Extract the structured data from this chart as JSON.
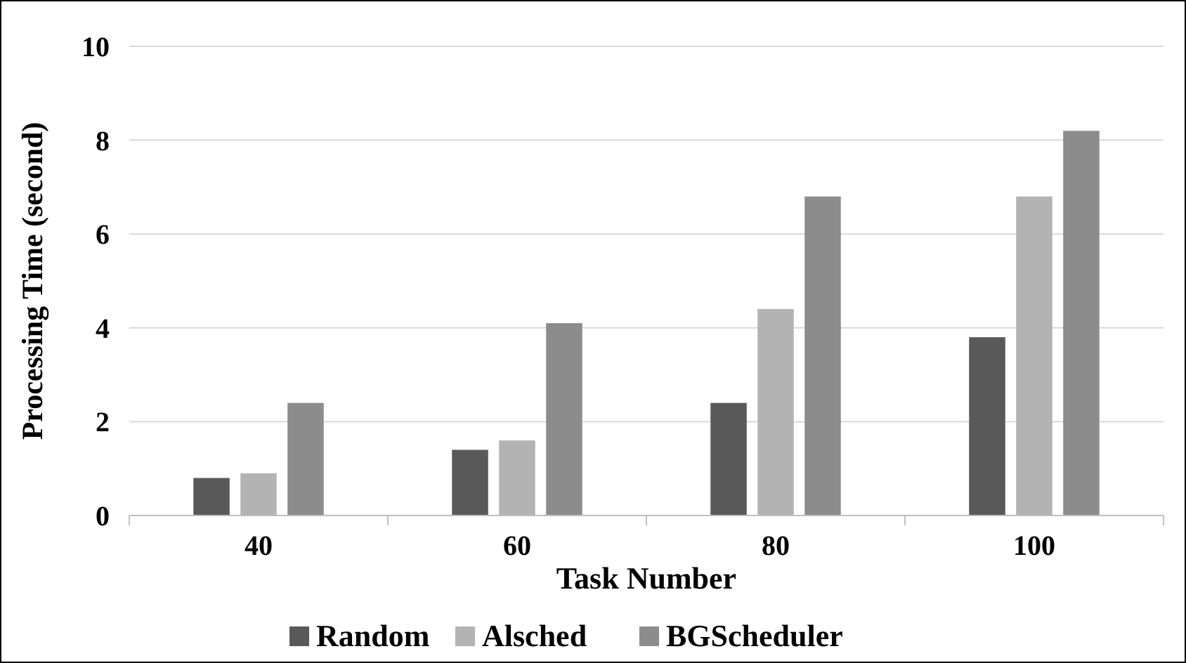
{
  "chart_data": {
    "type": "bar",
    "xlabel": "Task Number",
    "ylabel": "Processing Time (second)",
    "categories": [
      "40",
      "60",
      "80",
      "100"
    ],
    "series": [
      {
        "name": "Random",
        "color": "#595959",
        "values": [
          0.8,
          1.4,
          2.4,
          3.8
        ]
      },
      {
        "name": "Alsched",
        "color": "#b3b3b3",
        "values": [
          0.9,
          1.6,
          4.4,
          6.8
        ]
      },
      {
        "name": "BGScheduler",
        "color": "#8c8c8c",
        "values": [
          2.4,
          4.1,
          6.8,
          8.2
        ]
      }
    ],
    "ylim": [
      0,
      10
    ],
    "yticks": [
      0,
      2,
      4,
      6,
      8,
      10
    ],
    "grid": "y",
    "legend": "bottom"
  }
}
